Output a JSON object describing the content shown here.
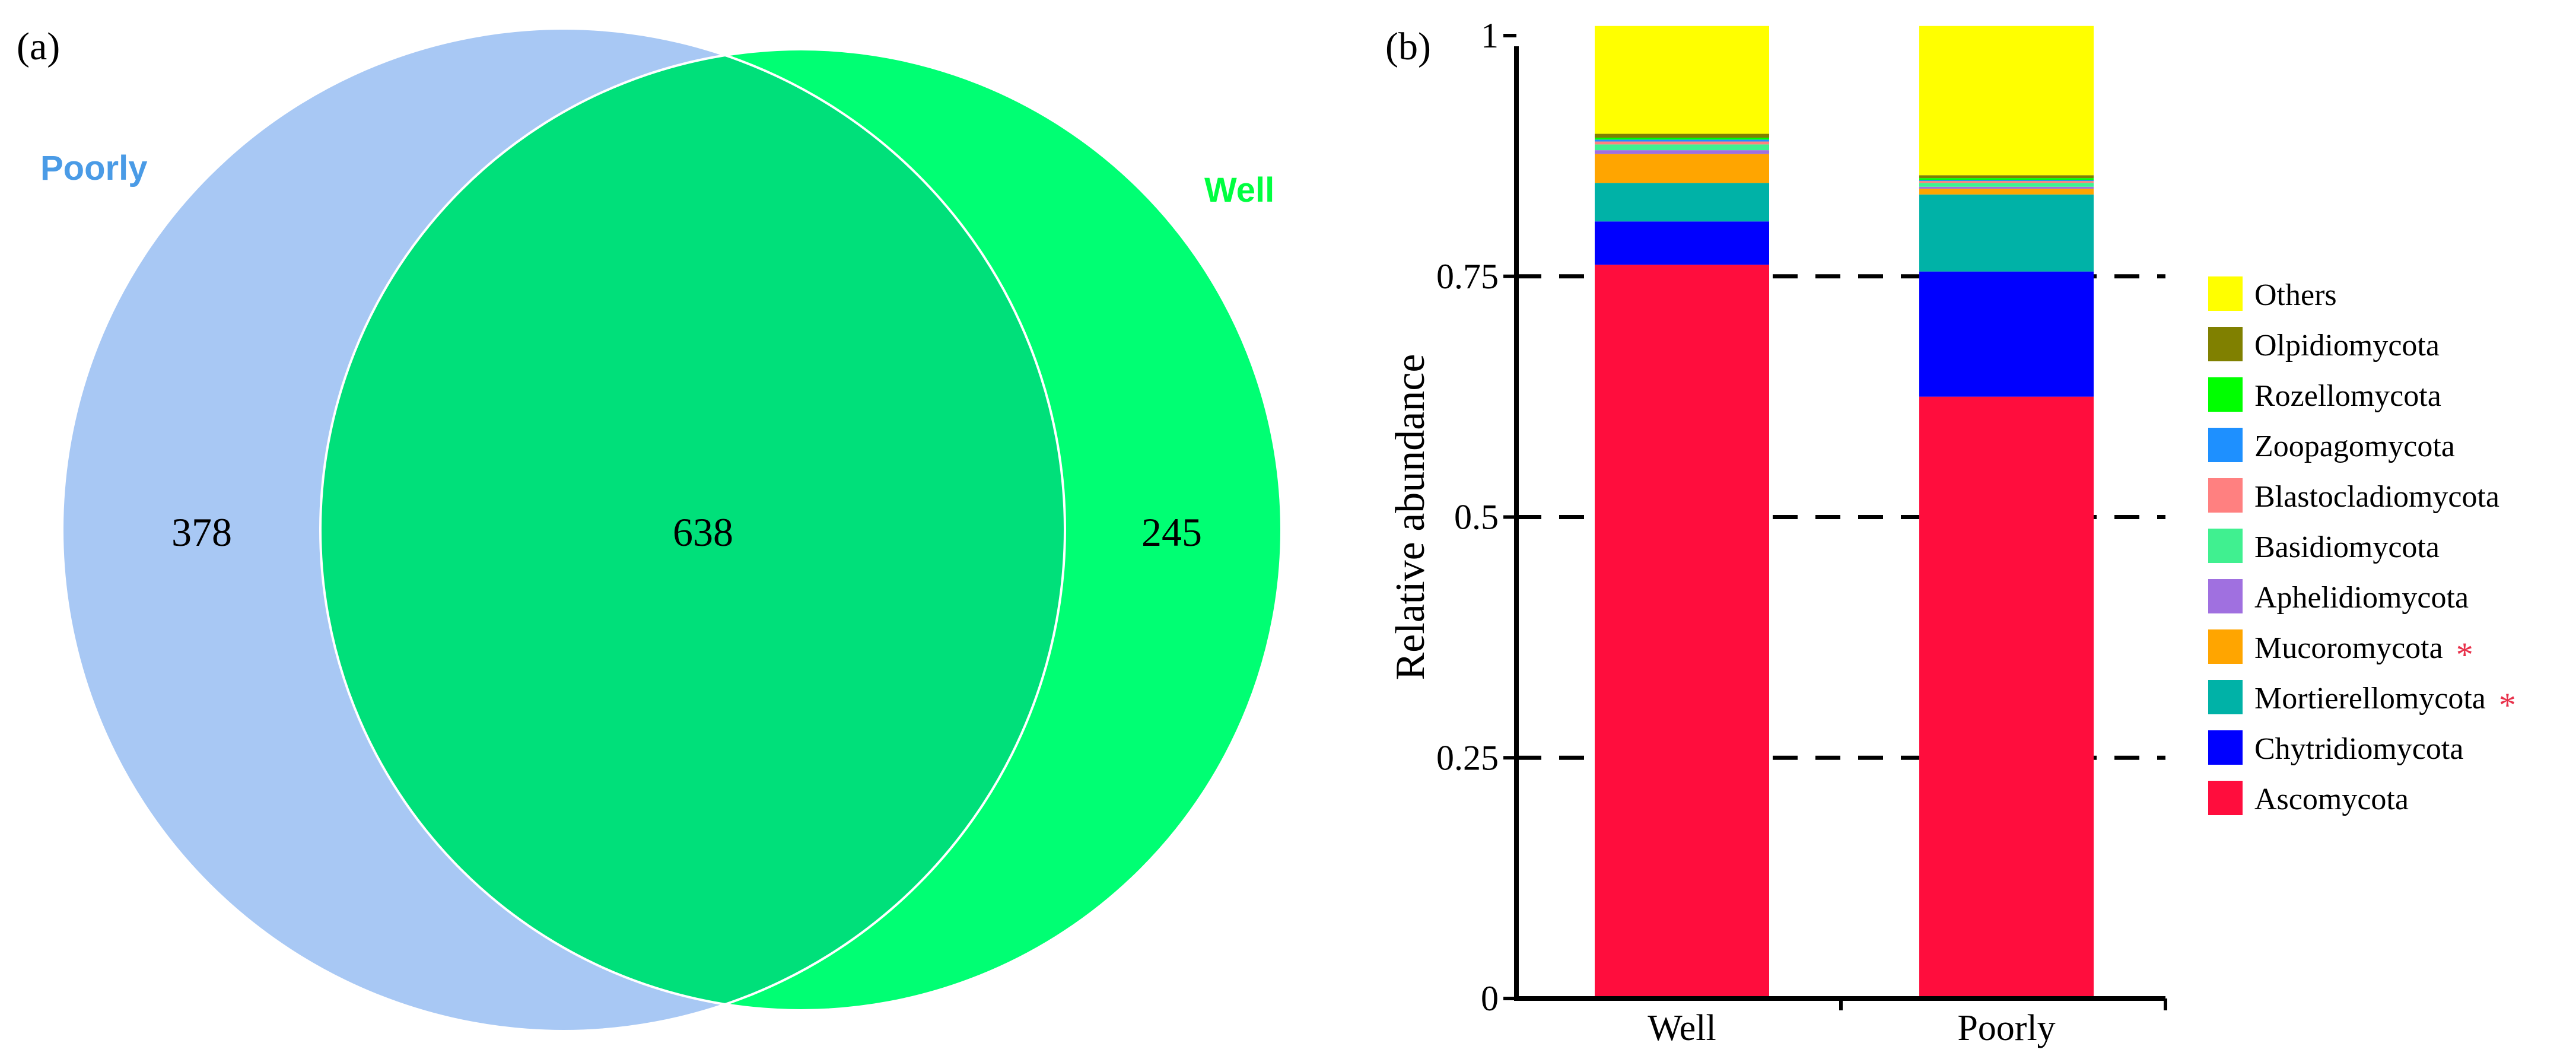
{
  "panel_a": {
    "label": "(a)",
    "colors": {
      "poorly": "#A8C8F4",
      "well": "#00FF73",
      "overlap": "#00E07A",
      "poorly_label": "#4A9BE6",
      "well_label": "#00FF40"
    },
    "sets": {
      "poorly_name": "Poorly",
      "well_name": "Well"
    },
    "counts": {
      "poorly_only": "378",
      "shared": "638",
      "well_only": "245"
    }
  },
  "panel_b": {
    "label": "(b)",
    "significance_marker": "*",
    "significance_color": "#E8304A"
  },
  "chart_data": [
    {
      "type": "venn",
      "sets": [
        "Poorly",
        "Well"
      ],
      "values": {
        "Poorly_only": 378,
        "Shared": 638,
        "Well_only": 245
      }
    },
    {
      "type": "bar",
      "stacked": true,
      "title": "",
      "xlabel": "",
      "ylabel": "Relative abundance",
      "ylim": [
        0,
        1
      ],
      "yticks": [
        "0",
        "0.25",
        "0.5",
        "0.75",
        "1"
      ],
      "ytick_values": [
        0,
        0.25,
        0.5,
        0.75,
        1
      ],
      "dashed_gridlines": [
        0.25,
        0.5,
        0.75
      ],
      "categories": [
        "Well",
        "Poorly"
      ],
      "series": [
        {
          "name": "Ascomycota",
          "color": "#FF0D3D",
          "values": [
            0.762,
            0.625
          ],
          "significant": false
        },
        {
          "name": "Chytridiomycota",
          "color": "#0000FF",
          "values": [
            0.045,
            0.13
          ],
          "significant": false
        },
        {
          "name": "Mortierellomycota",
          "color": "#00B2A7",
          "values": [
            0.04,
            0.08
          ],
          "significant": true
        },
        {
          "name": "Mucoromycota",
          "color": "#FFA500",
          "values": [
            0.03,
            0.006
          ],
          "significant": true
        },
        {
          "name": "Aphelidiomycota",
          "color": "#A070E0",
          "values": [
            0.004,
            0.002
          ],
          "significant": false
        },
        {
          "name": "Basidiomycota",
          "color": "#40F090",
          "values": [
            0.006,
            0.004
          ],
          "significant": false
        },
        {
          "name": "Blastocladiomycota",
          "color": "#FF8080",
          "values": [
            0.003,
            0.002
          ],
          "significant": false
        },
        {
          "name": "Zoopagomycota",
          "color": "#1E90FF",
          "values": [
            0.002,
            0.001
          ],
          "significant": false
        },
        {
          "name": "Rozellomycota",
          "color": "#00FF00",
          "values": [
            0.002,
            0.002
          ],
          "significant": false
        },
        {
          "name": "Olpidiomycota",
          "color": "#808000",
          "values": [
            0.004,
            0.003
          ],
          "significant": false
        },
        {
          "name": "Others",
          "color": "#FFFF00",
          "values": [
            0.112,
            0.155
          ],
          "significant": false
        }
      ],
      "legend_order": [
        "Others",
        "Olpidiomycota",
        "Rozellomycota",
        "Zoopagomycota",
        "Blastocladiomycota",
        "Basidiomycota",
        "Aphelidiomycota",
        "Mucoromycota",
        "Mortierellomycota",
        "Chytridiomycota",
        "Ascomycota"
      ],
      "legend_position": "right"
    }
  ]
}
